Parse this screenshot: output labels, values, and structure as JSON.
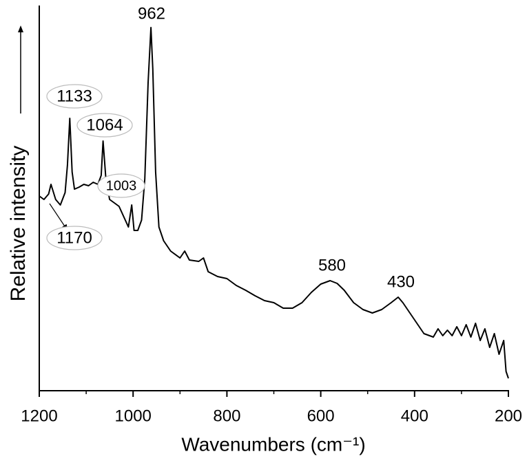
{
  "chart_data": {
    "type": "line",
    "x_label": "Wavenumbers (cm⁻¹)",
    "y_label": "Relative intensity",
    "annotations": [
      "962",
      "1133",
      "1064",
      "1003",
      "1170",
      "580",
      "430"
    ],
    "color": "#000000",
    "xlim": [
      1200,
      200
    ],
    "xticks": [
      1200,
      1000,
      800,
      600,
      400,
      200
    ],
    "ylim": [
      0,
      560
    ],
    "x": [
      1200,
      1190,
      1180,
      1175,
      1165,
      1155,
      1145,
      1140,
      1135,
      1130,
      1125,
      1115,
      1105,
      1095,
      1085,
      1075,
      1068,
      1064,
      1058,
      1050,
      1040,
      1030,
      1020,
      1010,
      1003,
      998,
      990,
      982,
      975,
      968,
      962,
      958,
      952,
      945,
      935,
      920,
      900,
      890,
      880,
      860,
      850,
      840,
      820,
      800,
      780,
      760,
      740,
      720,
      700,
      680,
      660,
      640,
      620,
      600,
      580,
      565,
      550,
      530,
      510,
      490,
      470,
      450,
      435,
      425,
      410,
      395,
      380,
      360,
      350,
      340,
      330,
      320,
      310,
      300,
      290,
      280,
      270,
      260,
      250,
      240,
      230,
      220,
      210,
      205,
      200
    ],
    "values": [
      283,
      278,
      286,
      300,
      278,
      270,
      288,
      328,
      396,
      318,
      293,
      296,
      300,
      298,
      303,
      300,
      313,
      363,
      308,
      278,
      273,
      268,
      253,
      238,
      270,
      233,
      233,
      248,
      308,
      448,
      528,
      468,
      318,
      238,
      218,
      203,
      193,
      203,
      190,
      188,
      193,
      173,
      166,
      163,
      153,
      146,
      138,
      131,
      128,
      120,
      120,
      128,
      143,
      155,
      160,
      156,
      146,
      128,
      118,
      113,
      118,
      128,
      136,
      128,
      113,
      98,
      83,
      78,
      90,
      80,
      88,
      80,
      93,
      80,
      96,
      78,
      98,
      73,
      90,
      63,
      83,
      53,
      73,
      28,
      18
    ]
  }
}
